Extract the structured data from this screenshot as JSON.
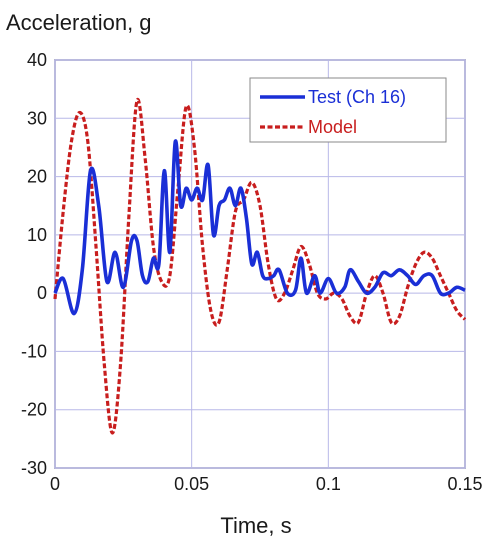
{
  "chart_data": {
    "type": "line",
    "title": "",
    "ylabel": "Acceleration, g",
    "xlabel": "Time, s",
    "xlim": [
      0,
      0.15
    ],
    "ylim": [
      -30,
      40
    ],
    "xticks": [
      "0",
      "0.05",
      "0.1",
      "0.15"
    ],
    "yticks": [
      "-30",
      "-20",
      "-10",
      "0",
      "10",
      "20",
      "30",
      "40"
    ],
    "grid": true,
    "legend_position": "top-right",
    "colors": {
      "grid": "#b8b8e8",
      "axis": "#7a7aa8"
    },
    "series": [
      {
        "name": "Test (Ch 16)",
        "color": "#1a2fd6",
        "style": "solid",
        "x": [
          0,
          0.003,
          0.007,
          0.01,
          0.013,
          0.016,
          0.019,
          0.022,
          0.025,
          0.028,
          0.03,
          0.032,
          0.034,
          0.036,
          0.038,
          0.04,
          0.042,
          0.044,
          0.046,
          0.048,
          0.05,
          0.052,
          0.054,
          0.056,
          0.058,
          0.06,
          0.062,
          0.064,
          0.066,
          0.068,
          0.07,
          0.072,
          0.074,
          0.076,
          0.078,
          0.08,
          0.082,
          0.085,
          0.088,
          0.09,
          0.092,
          0.095,
          0.097,
          0.1,
          0.103,
          0.106,
          0.108,
          0.111,
          0.114,
          0.117,
          0.12,
          0.123,
          0.126,
          0.129,
          0.132,
          0.135,
          0.138,
          0.141,
          0.144,
          0.147,
          0.15
        ],
        "y": [
          0,
          2.5,
          -3.5,
          4,
          21,
          15,
          2,
          7,
          1,
          9,
          9,
          3,
          2,
          6,
          5,
          21,
          7,
          26,
          15,
          18,
          16,
          18,
          16,
          22,
          10,
          15,
          16,
          18,
          15,
          18,
          13,
          5,
          7,
          3,
          2.5,
          3,
          4,
          0,
          0.5,
          6,
          0,
          3,
          0,
          2.5,
          0,
          1,
          4,
          2,
          0,
          1,
          3.5,
          3,
          4,
          3,
          1.5,
          3,
          3,
          0,
          0,
          1,
          0.5
        ]
      },
      {
        "name": "Model",
        "color": "#c81e1e",
        "style": "dashed",
        "x": [
          0,
          0.003,
          0.006,
          0.009,
          0.012,
          0.015,
          0.018,
          0.021,
          0.024,
          0.027,
          0.03,
          0.033,
          0.036,
          0.039,
          0.042,
          0.045,
          0.048,
          0.051,
          0.054,
          0.057,
          0.06,
          0.063,
          0.066,
          0.069,
          0.072,
          0.075,
          0.078,
          0.081,
          0.084,
          0.087,
          0.09,
          0.093,
          0.096,
          0.099,
          0.102,
          0.105,
          0.108,
          0.111,
          0.114,
          0.117,
          0.12,
          0.123,
          0.126,
          0.129,
          0.132,
          0.135,
          0.138,
          0.141,
          0.144,
          0.147,
          0.15
        ],
        "y": [
          -1,
          14,
          26,
          31,
          26,
          8,
          -12,
          -24,
          -12,
          13,
          33,
          23,
          8,
          2,
          3,
          18,
          32,
          25,
          8,
          -3,
          -5,
          4,
          14,
          16,
          19,
          15,
          5,
          -1,
          0,
          4,
          8,
          5,
          0,
          -1,
          0,
          -1,
          -4,
          -5,
          0,
          3,
          0,
          -5,
          -4,
          1,
          5,
          7,
          6,
          3,
          0,
          -3,
          -4.5
        ]
      }
    ]
  }
}
